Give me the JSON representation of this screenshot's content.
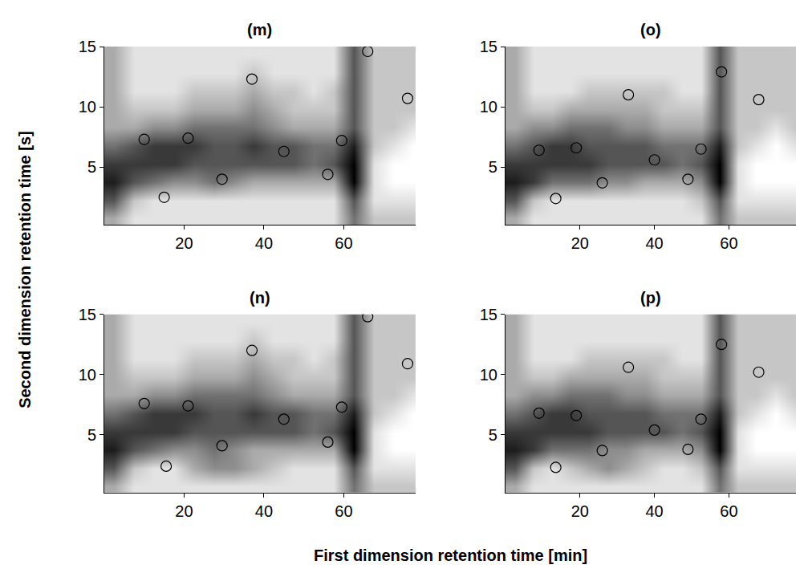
{
  "chart_data": {
    "type": "heatmap",
    "x_label": "First dimension retention time [min]",
    "y_label": "Second dimension retention time [s]",
    "xlim": [
      0,
      78
    ],
    "ylim": [
      0.2,
      15
    ],
    "xticks": [
      20,
      40,
      60
    ],
    "yticks": [
      5,
      10,
      15
    ],
    "zlim": [
      0,
      9
    ],
    "marker": "circle-open",
    "x": [
      2.5,
      7.5,
      12.5,
      17.5,
      22.5,
      27.5,
      32.5,
      37.5,
      42.5,
      47.5,
      52.5,
      57.5,
      62.5,
      67.5,
      72.5,
      77.5
    ],
    "y": [
      0.75,
      2.25,
      3.75,
      5.25,
      6.75,
      8.25,
      9.75,
      11.25,
      12.75,
      14.25
    ],
    "panels": [
      {
        "title": "(m)",
        "cells": [
          [
            3,
            1,
            1,
            1,
            1,
            1,
            1,
            1,
            1,
            1,
            1,
            1,
            5,
            2,
            2,
            2
          ],
          [
            6,
            2,
            1,
            1,
            1,
            1,
            1,
            1,
            1,
            1,
            1,
            1,
            6,
            1,
            1,
            1
          ],
          [
            8,
            6,
            5,
            4,
            4,
            5,
            4,
            3,
            3,
            3,
            3,
            3,
            9,
            1,
            0,
            0
          ],
          [
            7,
            7,
            7,
            7,
            6,
            6,
            6,
            6,
            6,
            6,
            5,
            6,
            9,
            1,
            0,
            0
          ],
          [
            5,
            6,
            7,
            7,
            7,
            6,
            6,
            7,
            6,
            6,
            5,
            5,
            8,
            2,
            1,
            0
          ],
          [
            3,
            3,
            4,
            4,
            5,
            5,
            5,
            5,
            4,
            3,
            3,
            3,
            6,
            2,
            2,
            1
          ],
          [
            3,
            2,
            2,
            2,
            3,
            3,
            3,
            4,
            3,
            2,
            2,
            2,
            6,
            2,
            2,
            2
          ],
          [
            3,
            1,
            1,
            1,
            2,
            2,
            2,
            3,
            2,
            2,
            1,
            2,
            6,
            2,
            2,
            2
          ],
          [
            3,
            1,
            1,
            1,
            1,
            1,
            1,
            2,
            1,
            1,
            1,
            1,
            6,
            2,
            2,
            2
          ],
          [
            3,
            1,
            1,
            1,
            1,
            1,
            1,
            1,
            1,
            1,
            1,
            1,
            6,
            2,
            2,
            2
          ]
        ],
        "peaks": {
          "x": [
            10,
            15,
            21,
            29.5,
            37,
            45,
            56,
            59.5,
            66,
            76
          ],
          "y": [
            7.3,
            2.5,
            7.4,
            4,
            12.3,
            6.3,
            4.4,
            7.2,
            14.6,
            10.7
          ]
        }
      },
      {
        "title": "(o)",
        "cells": [
          [
            3,
            1,
            1,
            1,
            1,
            1,
            1,
            1,
            1,
            1,
            1,
            5,
            2,
            2,
            2,
            2
          ],
          [
            6,
            2,
            1,
            1,
            1,
            1,
            1,
            1,
            1,
            1,
            2,
            6,
            1,
            1,
            1,
            1
          ],
          [
            8,
            7,
            5,
            5,
            5,
            4,
            4,
            3,
            3,
            3,
            4,
            9,
            1,
            0,
            0,
            0
          ],
          [
            7,
            7,
            7,
            7,
            7,
            6,
            6,
            6,
            6,
            5,
            6,
            9,
            1,
            0,
            0,
            0
          ],
          [
            5,
            6,
            7,
            7,
            6,
            6,
            6,
            6,
            5,
            5,
            5,
            8,
            2,
            1,
            0,
            1
          ],
          [
            3,
            4,
            4,
            5,
            5,
            5,
            4,
            4,
            3,
            3,
            3,
            6,
            2,
            2,
            1,
            2
          ],
          [
            3,
            2,
            2,
            3,
            3,
            3,
            3,
            3,
            2,
            2,
            2,
            6,
            2,
            2,
            2,
            2
          ],
          [
            3,
            1,
            1,
            1,
            2,
            2,
            2,
            2,
            2,
            1,
            1,
            6,
            2,
            2,
            2,
            2
          ],
          [
            3,
            1,
            1,
            1,
            1,
            1,
            1,
            1,
            1,
            1,
            1,
            6,
            2,
            2,
            2,
            2
          ],
          [
            3,
            1,
            1,
            1,
            1,
            1,
            1,
            1,
            1,
            1,
            1,
            6,
            2,
            2,
            2,
            2
          ]
        ],
        "peaks": {
          "x": [
            9,
            13.5,
            19,
            26,
            33,
            40,
            49,
            52.5,
            58,
            68
          ],
          "y": [
            6.4,
            2.4,
            6.6,
            3.7,
            11,
            5.6,
            4,
            6.5,
            12.9,
            10.6
          ]
        }
      },
      {
        "title": "(n)",
        "cells": [
          [
            3,
            1,
            1,
            1,
            1,
            1,
            1,
            1,
            1,
            1,
            1,
            1,
            5,
            2,
            2,
            2
          ],
          [
            6,
            2,
            1,
            1,
            3,
            4,
            4,
            3,
            2,
            1,
            1,
            1,
            6,
            1,
            1,
            1
          ],
          [
            8,
            6,
            5,
            4,
            4,
            5,
            4,
            3,
            3,
            3,
            3,
            3,
            9,
            1,
            0,
            0
          ],
          [
            7,
            7,
            7,
            7,
            6,
            6,
            6,
            6,
            6,
            6,
            5,
            6,
            9,
            1,
            0,
            0
          ],
          [
            5,
            6,
            7,
            7,
            7,
            6,
            6,
            7,
            6,
            6,
            5,
            5,
            8,
            2,
            1,
            0
          ],
          [
            3,
            3,
            4,
            4,
            5,
            5,
            5,
            5,
            4,
            3,
            3,
            3,
            6,
            2,
            2,
            1
          ],
          [
            3,
            2,
            2,
            2,
            3,
            3,
            3,
            4,
            3,
            2,
            2,
            2,
            6,
            2,
            2,
            2
          ],
          [
            3,
            1,
            1,
            1,
            2,
            2,
            2,
            3,
            2,
            2,
            1,
            2,
            6,
            2,
            2,
            2
          ],
          [
            3,
            1,
            1,
            1,
            1,
            1,
            1,
            2,
            1,
            1,
            1,
            1,
            6,
            2,
            2,
            2
          ],
          [
            3,
            1,
            1,
            1,
            1,
            1,
            1,
            1,
            1,
            1,
            1,
            1,
            6,
            2,
            2,
            2
          ]
        ],
        "peaks": {
          "x": [
            10,
            15.5,
            21,
            29.5,
            37,
            45,
            56,
            59.5,
            66,
            76
          ],
          "y": [
            7.6,
            2.4,
            7.4,
            4.1,
            12,
            6.3,
            4.4,
            7.3,
            14.8,
            10.9
          ]
        }
      },
      {
        "title": "(p)",
        "cells": [
          [
            3,
            1,
            1,
            1,
            1,
            1,
            1,
            1,
            1,
            1,
            1,
            5,
            2,
            2,
            2,
            2
          ],
          [
            6,
            2,
            1,
            2,
            3,
            4,
            3,
            2,
            1,
            1,
            2,
            6,
            1,
            1,
            1,
            1
          ],
          [
            8,
            7,
            5,
            5,
            5,
            4,
            4,
            3,
            3,
            3,
            4,
            9,
            1,
            0,
            0,
            0
          ],
          [
            7,
            7,
            7,
            7,
            7,
            6,
            6,
            6,
            6,
            5,
            6,
            9,
            1,
            0,
            0,
            0
          ],
          [
            5,
            6,
            7,
            7,
            6,
            6,
            6,
            6,
            5,
            5,
            5,
            8,
            2,
            1,
            0,
            1
          ],
          [
            3,
            4,
            4,
            5,
            5,
            5,
            4,
            4,
            3,
            3,
            3,
            6,
            2,
            2,
            1,
            2
          ],
          [
            3,
            2,
            2,
            3,
            3,
            3,
            3,
            3,
            2,
            2,
            2,
            6,
            2,
            2,
            2,
            2
          ],
          [
            3,
            1,
            1,
            1,
            2,
            2,
            2,
            2,
            2,
            1,
            1,
            6,
            2,
            2,
            2,
            2
          ],
          [
            3,
            1,
            1,
            1,
            1,
            1,
            1,
            1,
            1,
            1,
            1,
            6,
            2,
            2,
            2,
            2
          ],
          [
            3,
            1,
            1,
            1,
            1,
            1,
            1,
            1,
            1,
            1,
            1,
            6,
            2,
            2,
            2,
            2
          ]
        ],
        "peaks": {
          "x": [
            9,
            13.5,
            19,
            26,
            33,
            40,
            49,
            52.5,
            58,
            68
          ],
          "y": [
            6.8,
            2.3,
            6.6,
            3.7,
            10.6,
            5.4,
            3.8,
            6.3,
            12.5,
            10.2
          ]
        }
      }
    ]
  }
}
